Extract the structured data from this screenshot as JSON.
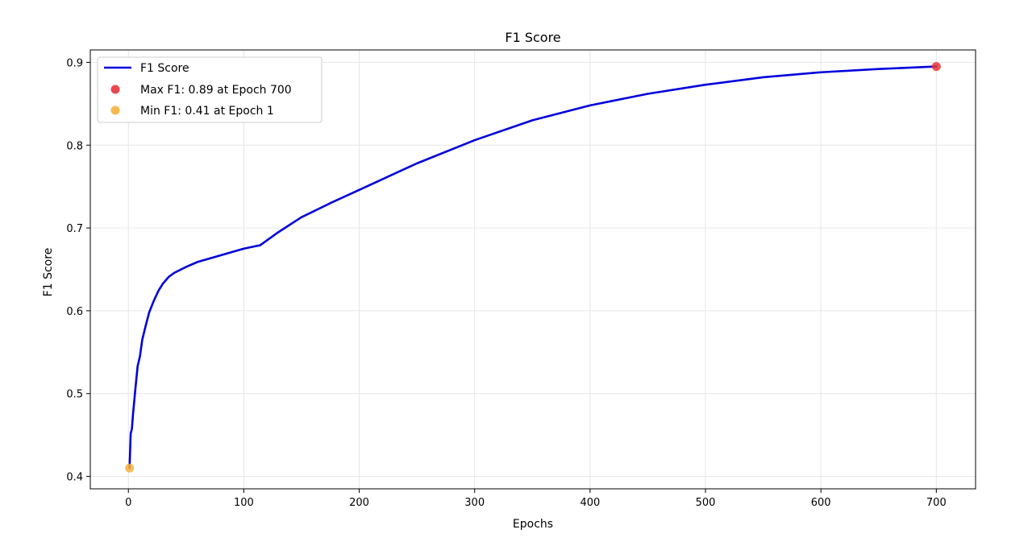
{
  "chart_data": {
    "type": "line",
    "title": "F1 Score",
    "xlabel": "Epochs",
    "ylabel": "F1 Score",
    "xlim": [
      -33,
      734
    ],
    "ylim": [
      0.385,
      0.915
    ],
    "xticks": [
      0,
      100,
      200,
      300,
      400,
      500,
      600,
      700
    ],
    "yticks": [
      0.4,
      0.5,
      0.6,
      0.7,
      0.8,
      0.9
    ],
    "grid": true,
    "legend_position": "top-left",
    "series": [
      {
        "name": "F1 Score",
        "color": "#0000dd",
        "x": [
          1,
          2,
          3,
          4,
          6,
          8,
          10,
          12,
          15,
          18,
          22,
          26,
          30,
          35,
          40,
          50,
          60,
          70,
          80,
          90,
          100,
          110,
          114,
          130,
          150,
          175,
          200,
          250,
          300,
          350,
          400,
          450,
          500,
          550,
          600,
          650,
          700
        ],
        "y": [
          0.41,
          0.452,
          0.457,
          0.475,
          0.505,
          0.533,
          0.545,
          0.565,
          0.582,
          0.598,
          0.612,
          0.624,
          0.633,
          0.641,
          0.646,
          0.653,
          0.659,
          0.663,
          0.667,
          0.671,
          0.675,
          0.678,
          0.679,
          0.695,
          0.713,
          0.73,
          0.746,
          0.778,
          0.806,
          0.83,
          0.848,
          0.862,
          0.873,
          0.882,
          0.888,
          0.892,
          0.895
        ]
      }
    ],
    "markers": [
      {
        "name": "Max F1: 0.89 at Epoch 700",
        "x": 700,
        "y": 0.895,
        "color": "#e8343a"
      },
      {
        "name": "Min F1: 0.41 at Epoch 1",
        "x": 1,
        "y": 0.41,
        "color": "#f6b13c"
      }
    ]
  }
}
